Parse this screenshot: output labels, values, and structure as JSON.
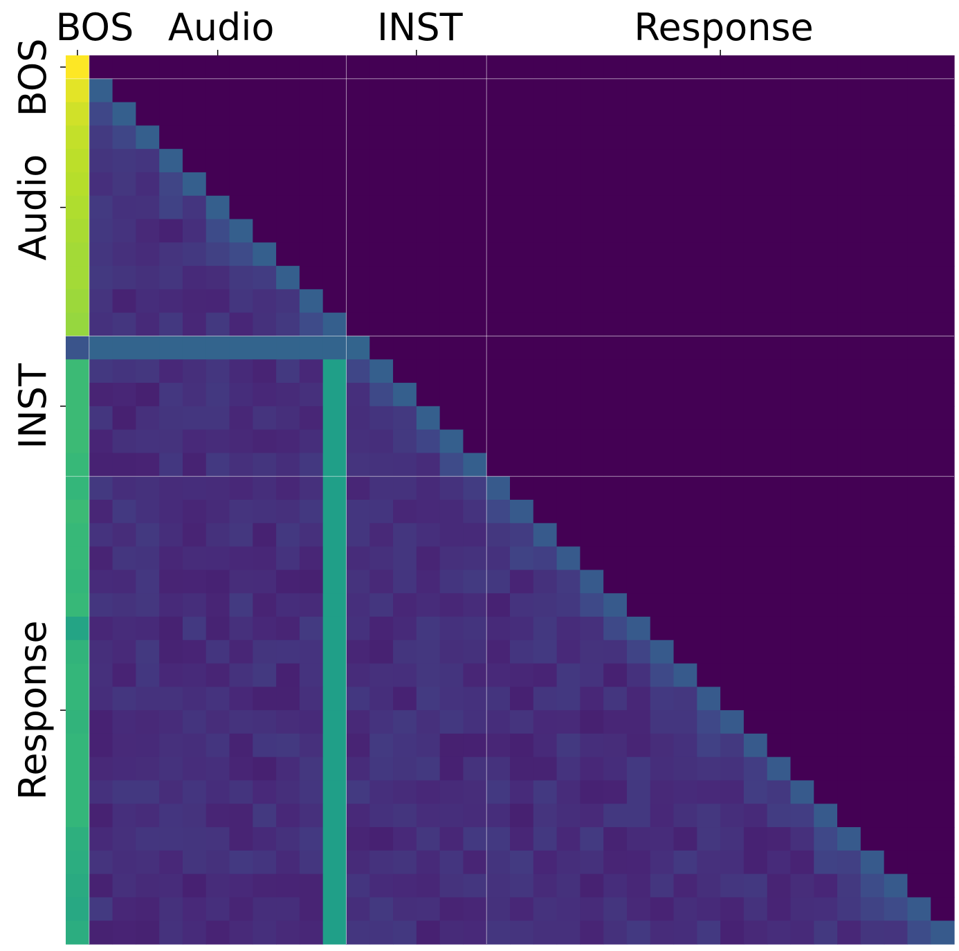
{
  "chart_data": {
    "type": "heatmap",
    "title": "",
    "xlabel": "",
    "ylabel": "",
    "colormap": "viridis",
    "n_tokens": 38,
    "segments": [
      {
        "name": "BOS",
        "start": 0,
        "end": 1
      },
      {
        "name": "Audio",
        "start": 1,
        "end": 12
      },
      {
        "name": "INST",
        "start": 12,
        "end": 18
      },
      {
        "name": "Response",
        "start": 18,
        "end": 38
      }
    ],
    "x_tick_labels": [
      "BOS",
      "Audio",
      "INST",
      "Response"
    ],
    "y_tick_labels": [
      "BOS",
      "Audio",
      "INST",
      "Response"
    ],
    "mask": "causal (upper triangle = 0)",
    "cell_values": {
      "bos_column": [
        1.0,
        0.96,
        0.93,
        0.91,
        0.9,
        0.89,
        0.88,
        0.87,
        0.86,
        0.86,
        0.85,
        0.84,
        0.26,
        0.68,
        0.68,
        0.68,
        0.68,
        0.67,
        0.66,
        0.68,
        0.67,
        0.67,
        0.66,
        0.67,
        0.58,
        0.65,
        0.66,
        0.66,
        0.65,
        0.66,
        0.66,
        0.66,
        0.66,
        0.63,
        0.62,
        0.61,
        0.6,
        0.62
      ],
      "inst_delimiter_row_index": 12,
      "inst_delimiter_row_value": 0.32,
      "audio_sink_column_index": 11,
      "audio_sink_column_value": 0.56,
      "audio_sink_column_start_row": 13,
      "diagonal_audio": 0.3,
      "diagonal_inst": 0.3,
      "diagonal_response": 0.28,
      "off_diagonal_background": 0.09,
      "masked_value": 0.0
    }
  }
}
